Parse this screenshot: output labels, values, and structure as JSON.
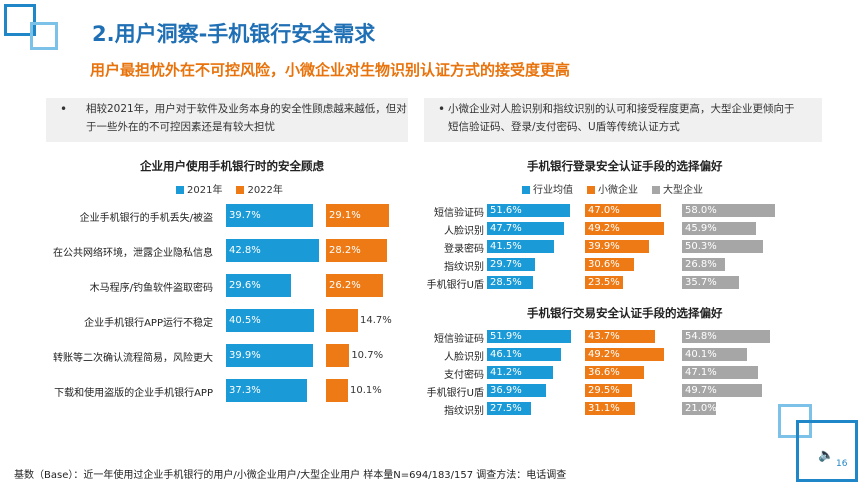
{
  "header": {
    "title": "2.用户洞察-手机银行安全需求",
    "subtitle": "用户最担忧外在不可控风险，小微企业对生物识别认证方式的接受度更高"
  },
  "notes": {
    "left": {
      "bullet": "•",
      "lines": [
        "相较2021年，用户对于软件及业务本身的安全性顾虑越来越低，但对",
        "于一些外在的不可控因素还是有较大担忧"
      ]
    },
    "right": {
      "bullet": "•",
      "lines": [
        "小微企业对人脸识别和指纹识别的认可和接受程度更高，大型企业更倾向于",
        "短信验证码、登录/支付密码、U盾等传统认证方式"
      ]
    }
  },
  "chart_data": [
    {
      "type": "bar",
      "orientation": "horizontal",
      "title": "企业用户使用手机银行时的安全顾虑",
      "categories": [
        "企业手机银行的手机丢失/被盗",
        "在公共网络环境，泄露企业隐私信息",
        "木马程序/钓鱼软件盗取密码",
        "企业手机银行APP运行不稳定",
        "转账等二次确认流程简易，风险更大",
        "下载和使用盗版的企业手机银行APP"
      ],
      "series": [
        {
          "name": "2021年",
          "color": "#1a9ad6",
          "values": [
            39.7,
            42.8,
            29.6,
            40.5,
            39.9,
            37.3
          ],
          "labels": [
            "39.7%",
            "42.8%",
            "29.6%",
            "40.5%",
            "39.9%",
            "37.3%"
          ]
        },
        {
          "name": "2022年",
          "color": "#ee7a16",
          "values": [
            29.1,
            28.2,
            26.2,
            14.7,
            10.7,
            10.1
          ],
          "labels": [
            "29.1%",
            "28.2%",
            "26.2%",
            "14.7%",
            "10.7%",
            "10.1%"
          ]
        }
      ],
      "legend_position": "top",
      "grid": false
    },
    {
      "type": "bar",
      "orientation": "horizontal",
      "title": "手机银行登录安全认证手段的选择偏好",
      "categories": [
        "短信验证码",
        "人脸识别",
        "登录密码",
        "指纹识别",
        "手机银行U盾"
      ],
      "series": [
        {
          "name": "行业均值",
          "color": "#1a9ad6",
          "values": [
            51.6,
            47.7,
            41.5,
            29.7,
            28.5
          ],
          "labels": [
            "51.6%",
            "47.7%",
            "41.5%",
            "29.7%",
            "28.5%"
          ]
        },
        {
          "name": "小微企业",
          "color": "#ee7a16",
          "values": [
            47.0,
            49.2,
            39.9,
            30.6,
            23.5
          ],
          "labels": [
            "47.0%",
            "49.2%",
            "39.9%",
            "30.6%",
            "23.5%"
          ]
        },
        {
          "name": "大型企业",
          "color": "#a6a6a6",
          "values": [
            58.0,
            45.9,
            50.3,
            26.8,
            35.7
          ],
          "labels": [
            "58.0%",
            "45.9%",
            "50.3%",
            "26.8%",
            "35.7%"
          ]
        }
      ],
      "legend_position": "top",
      "grid": false
    },
    {
      "type": "bar",
      "orientation": "horizontal",
      "title": "手机银行交易安全认证手段的选择偏好",
      "categories": [
        "短信验证码",
        "人脸识别",
        "支付密码",
        "手机银行U盾",
        "指纹识别"
      ],
      "series": [
        {
          "name": "行业均值",
          "color": "#1a9ad6",
          "values": [
            51.9,
            46.1,
            41.2,
            36.9,
            27.5
          ],
          "labels": [
            "51.9%",
            "46.1%",
            "41.2%",
            "36.9%",
            "27.5%"
          ]
        },
        {
          "name": "小微企业",
          "color": "#ee7a16",
          "values": [
            43.7,
            49.2,
            36.6,
            29.5,
            31.1
          ],
          "labels": [
            "43.7%",
            "49.2%",
            "36.6%",
            "29.5%",
            "31.1%"
          ]
        },
        {
          "name": "大型企业",
          "color": "#a6a6a6",
          "values": [
            54.8,
            40.1,
            47.1,
            49.7,
            21.0
          ],
          "labels": [
            "54.8%",
            "40.1%",
            "47.1%",
            "49.7%",
            "21.0%"
          ]
        }
      ],
      "grid": false
    }
  ],
  "footer": {
    "text": "基数（Base）：近一年使用过企业手机银行的用户/小微企业用户/大型企业用户   样本量N=694/183/157  调查方法：电话调查"
  },
  "page": {
    "number": "16"
  },
  "icons": {
    "speaker": "speaker-icon"
  }
}
